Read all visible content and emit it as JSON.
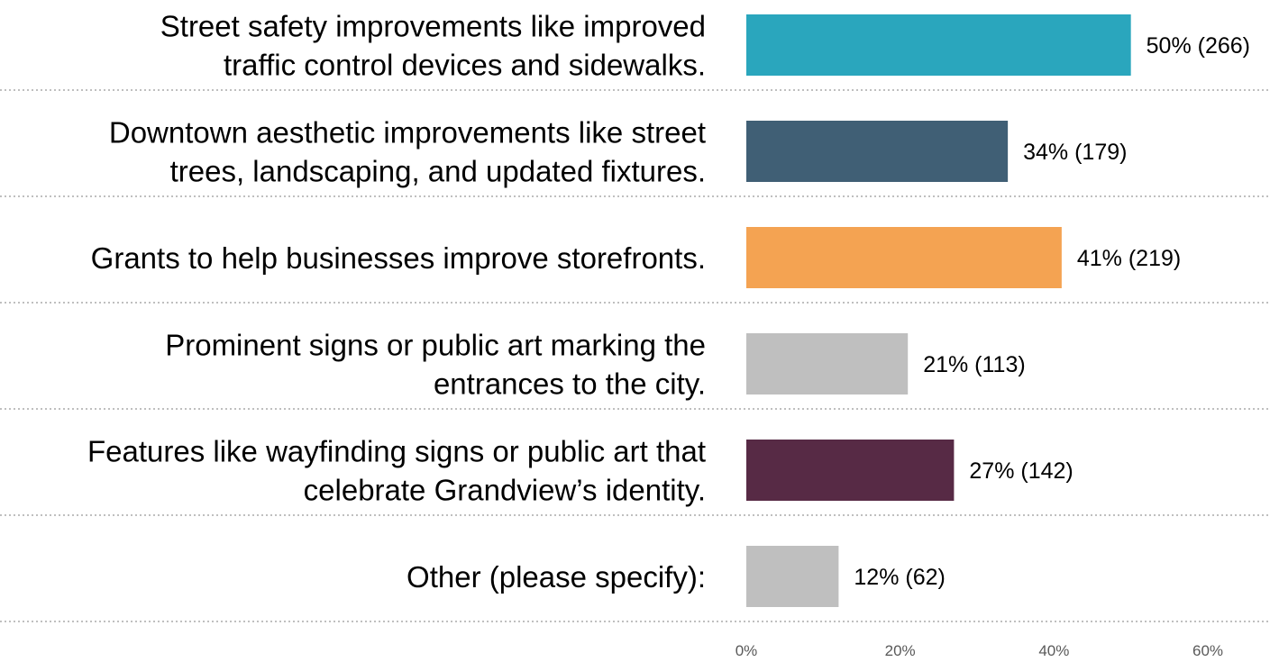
{
  "chart_data": {
    "type": "bar",
    "orientation": "horizontal",
    "categories": [
      [
        "Street safety improvements like improved",
        "traffic control devices and sidewalks."
      ],
      [
        "Downtown aesthetic improvements like street",
        "trees, landscaping, and updated fixtures."
      ],
      [
        "Grants to help businesses improve storefronts."
      ],
      [
        "Prominent signs or public art marking the",
        "entrances to the city."
      ],
      [
        "Features like wayfinding signs or public art that",
        "celebrate Grandview’s identity."
      ],
      [
        "Other (please specify):"
      ]
    ],
    "values": [
      50,
      34,
      41,
      21,
      27,
      12
    ],
    "counts": [
      266,
      179,
      219,
      113,
      142,
      62
    ],
    "data_labels": [
      "50% (266)",
      "34% (179)",
      "41% (219)",
      "21% (113)",
      "27% (142)",
      "12% (62)"
    ],
    "colors": [
      "#2aa6bd",
      "#405f75",
      "#f4a352",
      "#bfbfbf",
      "#572a45",
      "#bfbfbf"
    ],
    "x_ticks": [
      "0%",
      "20%",
      "40%",
      "60%"
    ],
    "x_tick_values": [
      0,
      20,
      40,
      60
    ],
    "xlim": [
      0,
      60
    ],
    "grid": false,
    "legend": "none",
    "title": "",
    "xlabel": "",
    "ylabel": ""
  }
}
